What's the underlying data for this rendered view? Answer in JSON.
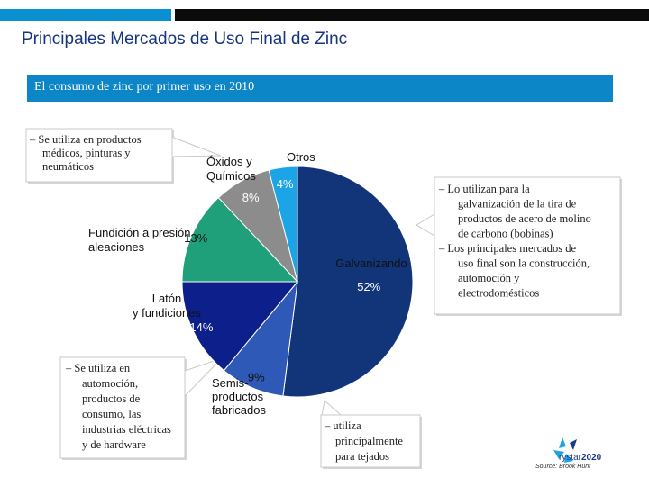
{
  "header": {
    "title": "Principales Mercados de Uso Final de Zinc"
  },
  "subtitle": "El consumo de zinc por primer uso en 2010",
  "chart_data": {
    "type": "pie",
    "categories": [
      "Galvanizando",
      "Semis-productos fabricados",
      "Latón y fundiciones",
      "Fundición a presión aleaciones",
      "Óxidos y Químicos",
      "Otros"
    ],
    "values": [
      52,
      9,
      14,
      13,
      8,
      4
    ],
    "value_labels": [
      "52%",
      "9%",
      "14%",
      "13%",
      "8%",
      "4%"
    ],
    "category_labels": [
      [
        "Galvanizando"
      ],
      [
        "Semis-",
        "productos",
        "fabricados"
      ],
      [
        "Latón",
        "y fundiciones"
      ],
      [
        "Fundición a presión",
        "aleaciones"
      ],
      [
        "Óxidos y",
        "Químicos"
      ],
      [
        "Otros"
      ]
    ],
    "colors": [
      "#12357a",
      "#2f59b6",
      "#0c1f8a",
      "#1fa07a",
      "#8c8c8c",
      "#1ba5e6"
    ]
  },
  "callouts": {
    "productos_medicos": [
      "– Se utiliza en productos",
      "médicos, pinturas y",
      "neumáticos"
    ],
    "galvanizacion": [
      "– Lo utilizan para la",
      "galvanización de la tira de",
      "productos de acero de molino",
      "de carbono (bobinas)",
      "– Los principales mercados de",
      "uso final son la construcción,",
      "automoción y",
      "electrodomésticos"
    ],
    "automocion": [
      "– Se utiliza en",
      "automoción,",
      "productos de",
      "consumo, las",
      "industrias eléctricas",
      "y de hardware"
    ],
    "tejados": [
      "– utiliza",
      "principalmente",
      "para tejados"
    ]
  },
  "logo": {
    "brand": "rystar",
    "year": "2020"
  },
  "source": "Source: Brook Hunt"
}
